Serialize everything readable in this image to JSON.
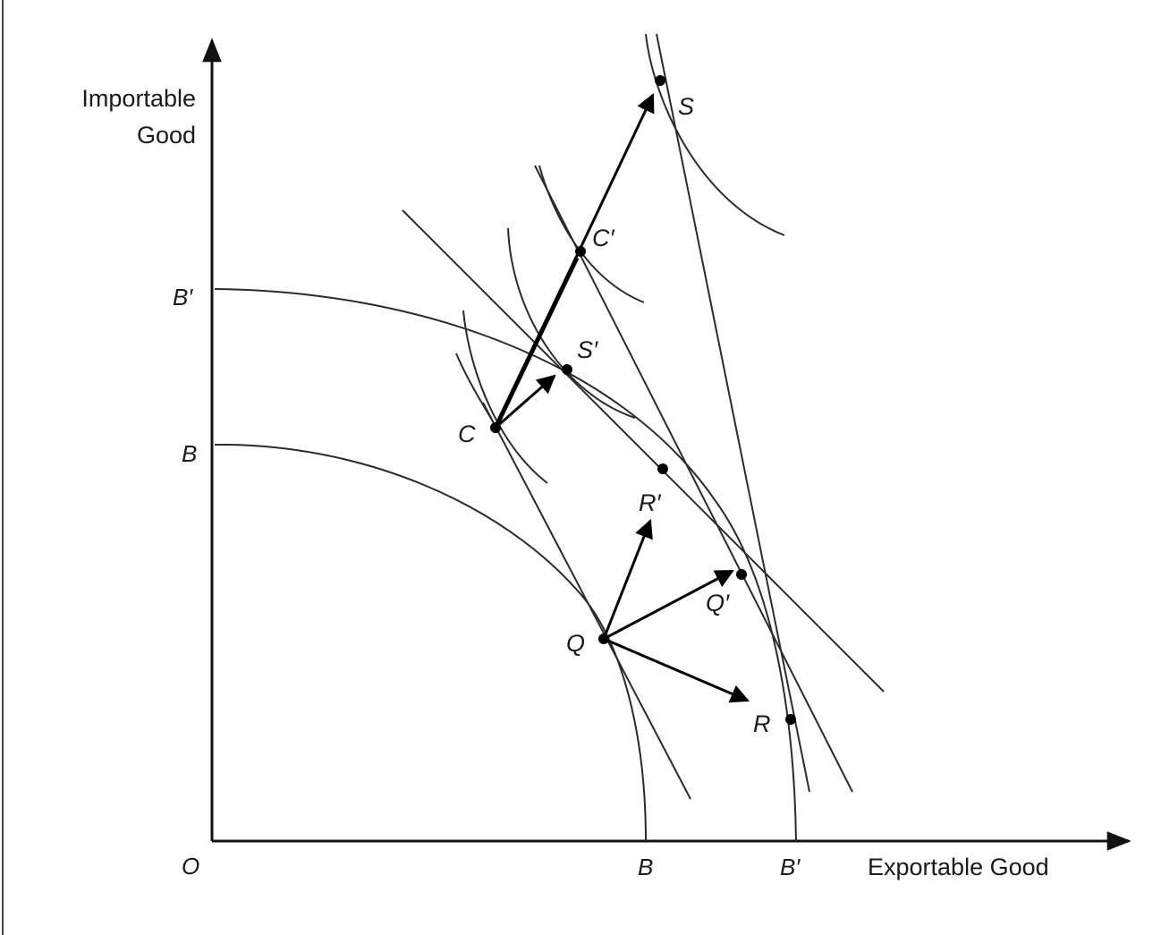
{
  "axes": {
    "y_title_line1": "Importable",
    "y_title_line2": "Good",
    "x_title": "Exportable Good",
    "origin": "O",
    "y_tick_outer": "B′",
    "y_tick_inner": "B",
    "x_tick_inner": "B",
    "x_tick_outer": "B′"
  },
  "points": {
    "S": "S",
    "C_prime": "C′",
    "S_prime": "S′",
    "C": "C",
    "R_prime": "R′",
    "Q_prime": "Q′",
    "Q": "Q",
    "R": "R"
  },
  "colors": {
    "ink": "#1a1a1a",
    "background": "#ffffff"
  }
}
